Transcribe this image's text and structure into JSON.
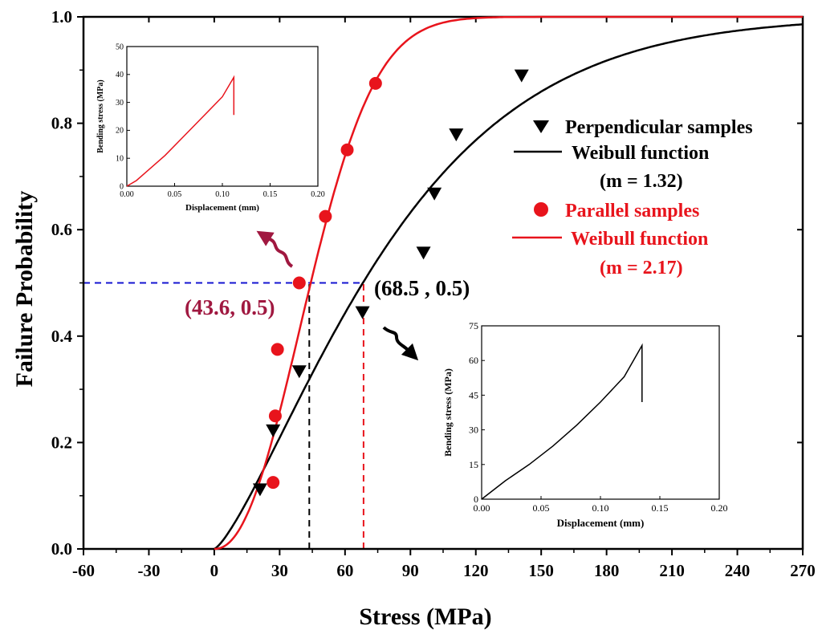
{
  "chart_data": {
    "type": "scatter",
    "title": "",
    "xlabel": "Stress (MPa)",
    "ylabel": "Failure Probability",
    "xlim": [
      -60,
      270
    ],
    "ylim": [
      0,
      1.0
    ],
    "xticks": [
      -60,
      -30,
      0,
      30,
      60,
      90,
      120,
      150,
      180,
      210,
      240,
      270
    ],
    "yticks": [
      0.0,
      0.2,
      0.4,
      0.6,
      0.8,
      1.0
    ],
    "series": [
      {
        "name": "Perpendicular samples",
        "kind": "scatter",
        "marker": "down-triangle",
        "color": "#000000",
        "points": [
          [
            21,
            0.111
          ],
          [
            27,
            0.222
          ],
          [
            39,
            0.333
          ],
          [
            68,
            0.444
          ],
          [
            96,
            0.556
          ],
          [
            101,
            0.667
          ],
          [
            111,
            0.778
          ],
          [
            141,
            0.889
          ]
        ]
      },
      {
        "name": "Weibull function",
        "kind": "line",
        "color": "#000000",
        "modulus_label": "(m = 1.32)",
        "weibull": {
          "m": 1.32,
          "threshold": 0,
          "scale": 90
        }
      },
      {
        "name": "Parallel samples",
        "kind": "scatter",
        "marker": "circle",
        "color": "#e8141c",
        "points": [
          [
            27,
            0.125
          ],
          [
            28,
            0.25
          ],
          [
            29,
            0.375
          ],
          [
            39,
            0.5
          ],
          [
            51,
            0.625
          ],
          [
            61,
            0.75
          ],
          [
            74,
            0.875
          ]
        ]
      },
      {
        "name": "Weibull function",
        "kind": "line",
        "color": "#e8141c",
        "modulus_label": "(m = 2.17)",
        "weibull": {
          "m": 2.17,
          "threshold": 0,
          "scale": 52.4
        }
      }
    ],
    "reference_lines": {
      "horizontal": {
        "y": 0.5,
        "x_from": -60,
        "x_to": 68.5,
        "color": "#1414d2"
      },
      "vertical": [
        {
          "x": 43.6,
          "y_from": 0,
          "y_to": 0.5,
          "color": "#000000"
        },
        {
          "x": 68.5,
          "y_from": 0,
          "y_to": 0.5,
          "color": "#e8141c"
        }
      ]
    },
    "annotations": [
      {
        "text": "(43.6, 0.5)",
        "color": "#a01840"
      },
      {
        "text": "(68.5 , 0.5)",
        "color": "#000000"
      }
    ],
    "insets": [
      {
        "name": "parallel-inset",
        "xlabel": "Displacement (mm)",
        "ylabel": "Bending stress (MPa)",
        "xlim": [
          0,
          0.2
        ],
        "ylim": [
          0,
          50
        ],
        "xticks": [
          0.0,
          0.05,
          0.1,
          0.15,
          0.2
        ],
        "xtick_labels": [
          "0.00",
          "0.05",
          "0.10",
          "0.15",
          "0.20"
        ],
        "yticks": [
          0,
          10,
          20,
          30,
          40,
          50
        ],
        "color": "#e8141c",
        "points": [
          [
            0,
            0
          ],
          [
            0.01,
            2
          ],
          [
            0.02,
            5
          ],
          [
            0.04,
            11
          ],
          [
            0.06,
            18
          ],
          [
            0.08,
            25
          ],
          [
            0.1,
            32
          ],
          [
            0.112,
            39
          ],
          [
            0.112,
            25.5
          ]
        ]
      },
      {
        "name": "perpendicular-inset",
        "xlabel": "Displacement (mm)",
        "ylabel": "Bending stress (MPa)",
        "xlim": [
          0,
          0.2
        ],
        "ylim": [
          0,
          75
        ],
        "xticks": [
          0.0,
          0.05,
          0.1,
          0.15,
          0.2
        ],
        "xtick_labels": [
          "0.00",
          "0.05",
          "0.10",
          "0.15",
          "0.20"
        ],
        "yticks": [
          0,
          15,
          30,
          45,
          60,
          75
        ],
        "color": "#000000",
        "points": [
          [
            0,
            0
          ],
          [
            0.01,
            4
          ],
          [
            0.02,
            8
          ],
          [
            0.04,
            15
          ],
          [
            0.06,
            23
          ],
          [
            0.08,
            32
          ],
          [
            0.1,
            42
          ],
          [
            0.12,
            53
          ],
          [
            0.135,
            66.5
          ],
          [
            0.135,
            42
          ]
        ]
      }
    ]
  }
}
